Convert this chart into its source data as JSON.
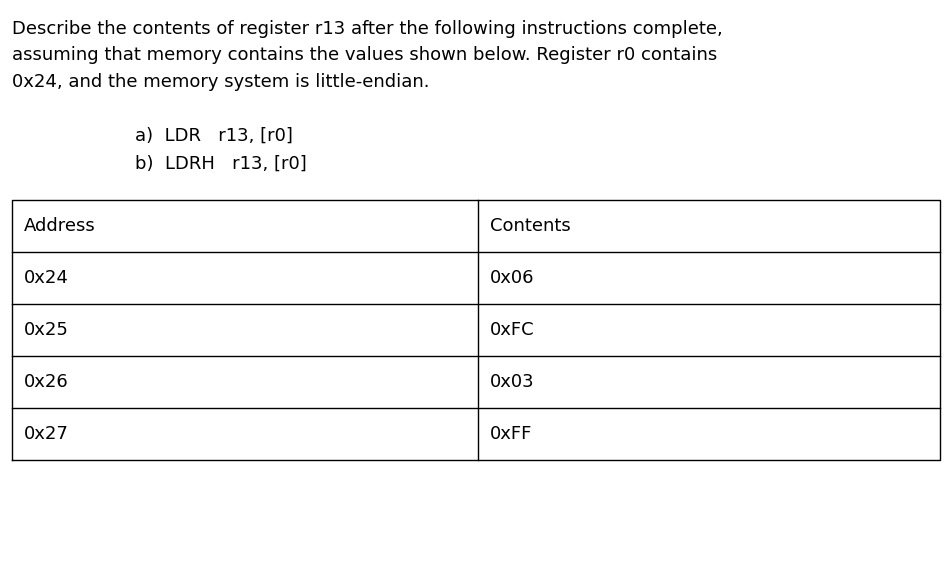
{
  "title_text": "Describe the contents of register r13 after the following instructions complete,\nassuming that memory contains the values shown below. Register r0 contains\n0x24, and the memory system is little-endian.",
  "instructions": [
    "a)  LDR   r13, [r0]",
    "b)  LDRH   r13, [r0]"
  ],
  "table_headers": [
    "Address",
    "Contents"
  ],
  "table_rows": [
    [
      "0x24",
      "0x06"
    ],
    [
      "0x25",
      "0xFC"
    ],
    [
      "0x26",
      "0x03"
    ],
    [
      "0x27",
      "0xFF"
    ]
  ],
  "bg_color": "#ffffff",
  "text_color": "#000000",
  "font_size_title": 13.0,
  "font_size_table": 13.0,
  "font_size_instr": 13.0,
  "fig_width": 9.52,
  "fig_height": 5.62,
  "dpi": 100
}
